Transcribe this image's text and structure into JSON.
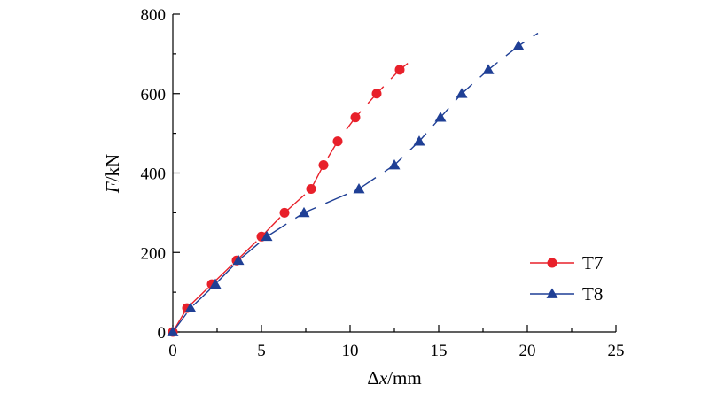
{
  "chart_data": {
    "type": "line",
    "title": "",
    "xlabel_prefix": "Δ",
    "xlabel_var": "x",
    "xlabel_unit": "/mm",
    "ylabel_var": "F",
    "ylabel_unit": "/kN",
    "xlim": [
      0,
      25
    ],
    "ylim": [
      0,
      800
    ],
    "xticks": [
      "0",
      "5",
      "10",
      "15",
      "20",
      "25"
    ],
    "yticks": [
      "0",
      "200",
      "400",
      "600",
      "800"
    ],
    "grid": false,
    "legend_position": "bottom-right",
    "series": [
      {
        "name": "T7",
        "color": "#e8202a",
        "marker": "circle",
        "x": [
          0,
          0.8,
          2.2,
          3.6,
          5.0,
          6.3,
          7.8,
          8.5,
          9.3,
          10.3,
          11.5,
          12.8
        ],
        "y": [
          0,
          60,
          120,
          180,
          240,
          300,
          360,
          420,
          480,
          540,
          600,
          660
        ],
        "curve_extension": [
          13.7,
          692
        ]
      },
      {
        "name": "T8",
        "color": "#1f3f95",
        "marker": "triangle",
        "x": [
          0,
          1.0,
          2.4,
          3.7,
          5.3,
          7.4,
          10.5,
          12.5,
          13.9,
          15.1,
          16.3,
          17.8,
          19.5
        ],
        "y": [
          0,
          60,
          120,
          180,
          240,
          300,
          360,
          420,
          480,
          540,
          600,
          660,
          720
        ],
        "curve_extension": [
          20.6,
          752
        ]
      }
    ]
  }
}
